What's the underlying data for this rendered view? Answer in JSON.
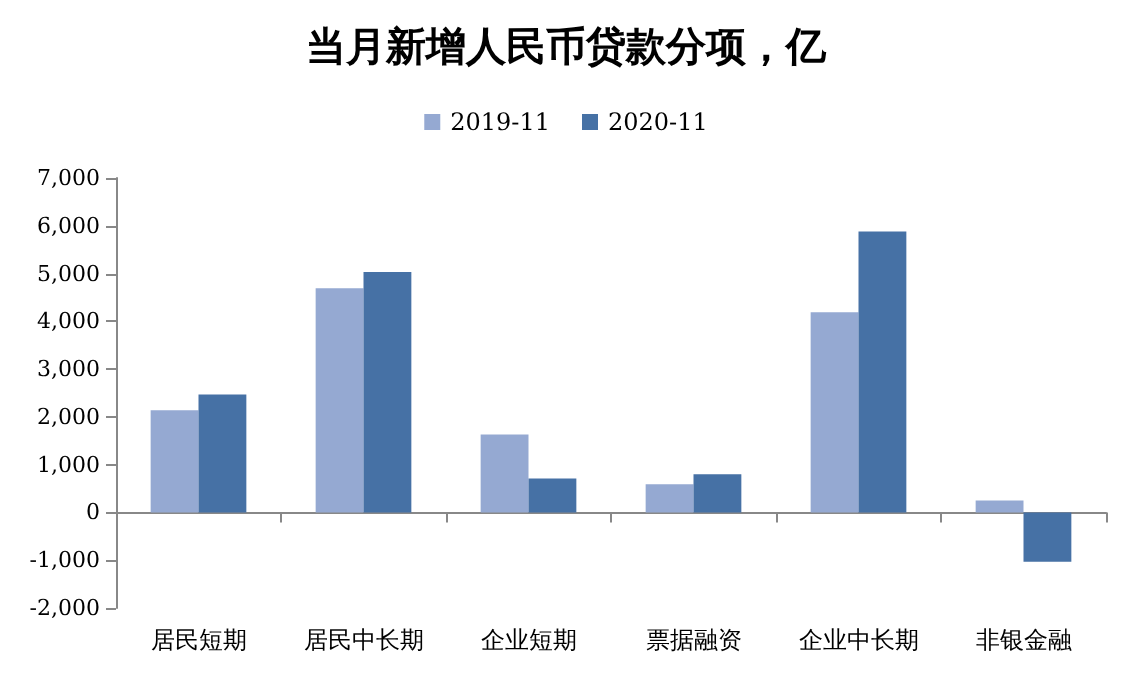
{
  "chart_data": {
    "type": "bar",
    "title": "当月新增人民币贷款分项，亿",
    "categories": [
      "居民短期",
      "居民中长期",
      "企业短期",
      "票据融资",
      "企业中长期",
      "非银金融"
    ],
    "series": [
      {
        "name": "2019-11",
        "color": "#95a9d2",
        "values": [
          2140,
          4690,
          1630,
          590,
          4190,
          250
        ]
      },
      {
        "name": "2020-11",
        "color": "#4671a5",
        "values": [
          2470,
          5030,
          710,
          800,
          5880,
          -1030
        ]
      }
    ],
    "ylim": [
      -2000,
      7000
    ],
    "yticks": [
      {
        "value": -2000,
        "label": "-2,000"
      },
      {
        "value": -1000,
        "label": "-1,000"
      },
      0,
      {
        "value": 1000,
        "label": "1,000"
      },
      {
        "value": 2000,
        "label": "2,000"
      },
      {
        "value": 3000,
        "label": "3,000"
      },
      {
        "value": 4000,
        "label": "4,000"
      },
      {
        "value": 5000,
        "label": "5,000"
      },
      {
        "value": 6000,
        "label": "6,000"
      },
      {
        "value": 7000,
        "label": "7,000"
      }
    ],
    "legend": "top"
  }
}
